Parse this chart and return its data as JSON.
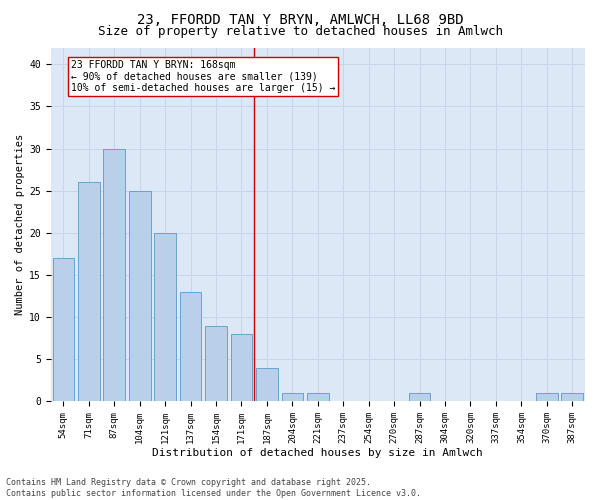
{
  "title1": "23, FFORDD TAN Y BRYN, AMLWCH, LL68 9BD",
  "title2": "Size of property relative to detached houses in Amlwch",
  "xlabel": "Distribution of detached houses by size in Amlwch",
  "ylabel": "Number of detached properties",
  "categories": [
    "54sqm",
    "71sqm",
    "87sqm",
    "104sqm",
    "121sqm",
    "137sqm",
    "154sqm",
    "171sqm",
    "187sqm",
    "204sqm",
    "221sqm",
    "237sqm",
    "254sqm",
    "270sqm",
    "287sqm",
    "304sqm",
    "320sqm",
    "337sqm",
    "354sqm",
    "370sqm",
    "387sqm"
  ],
  "values": [
    17,
    26,
    30,
    25,
    20,
    13,
    9,
    8,
    4,
    1,
    1,
    0,
    0,
    0,
    1,
    0,
    0,
    0,
    0,
    1,
    1
  ],
  "bar_color": "#b8d0ea",
  "bar_edgecolor": "#5a9aca",
  "bar_linewidth": 0.6,
  "vline_x_index": 7.5,
  "vline_color": "#cc0000",
  "vline_linewidth": 1.0,
  "annotation_title": "23 FFORDD TAN Y BRYN: 168sqm",
  "annotation_line1": "← 90% of detached houses are smaller (139)",
  "annotation_line2": "10% of semi-detached houses are larger (15) →",
  "annotation_box_color": "white",
  "annotation_box_edgecolor": "#cc0000",
  "ylim": [
    0,
    42
  ],
  "yticks": [
    0,
    5,
    10,
    15,
    20,
    25,
    30,
    35,
    40
  ],
  "grid_color": "#c8d4e8",
  "background_color": "#dce8f5",
  "footer1": "Contains HM Land Registry data © Crown copyright and database right 2025.",
  "footer2": "Contains public sector information licensed under the Open Government Licence v3.0.",
  "title1_fontsize": 10,
  "title2_fontsize": 9,
  "tick_fontsize": 6.5,
  "xlabel_fontsize": 8,
  "ylabel_fontsize": 7.5,
  "footer_fontsize": 6,
  "ann_fontsize": 7
}
